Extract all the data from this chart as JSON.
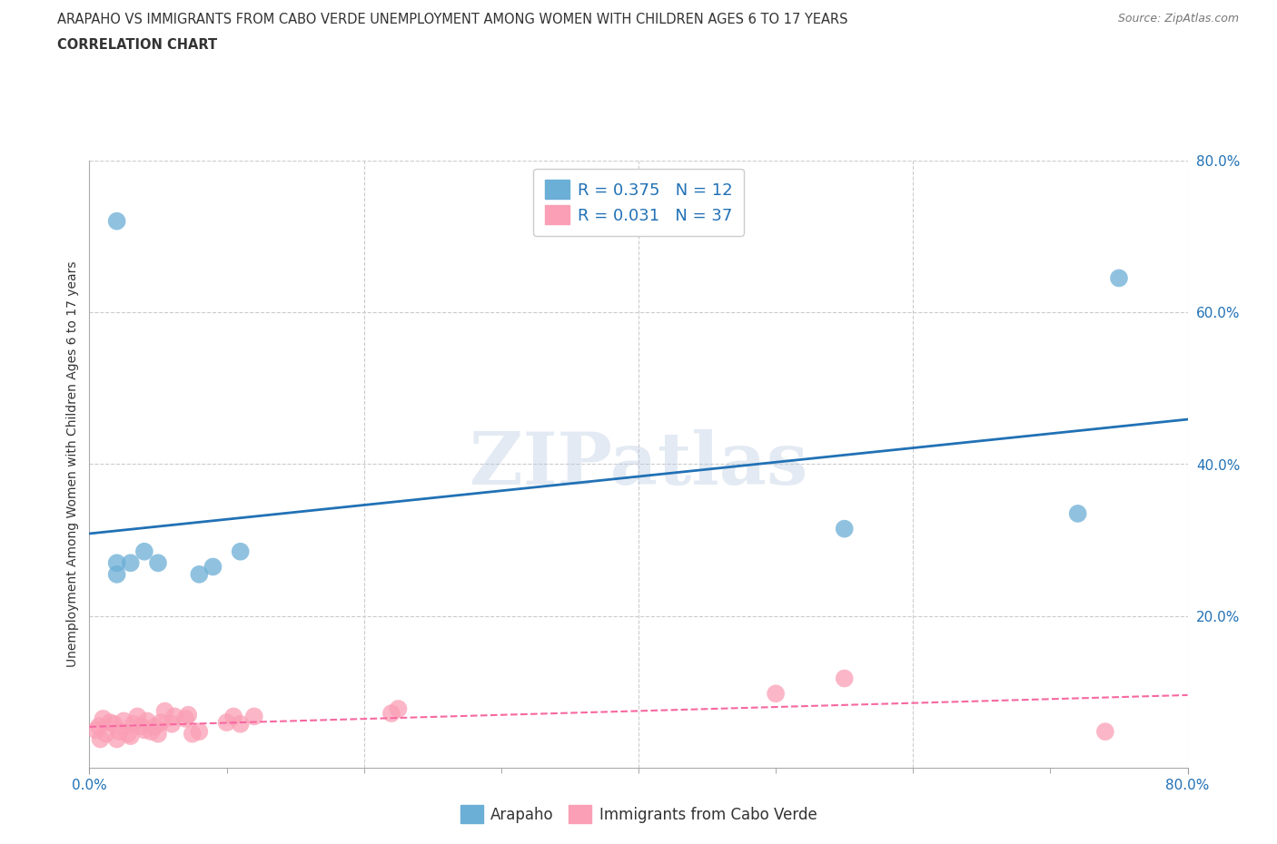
{
  "title_line1": "ARAPAHO VS IMMIGRANTS FROM CABO VERDE UNEMPLOYMENT AMONG WOMEN WITH CHILDREN AGES 6 TO 17 YEARS",
  "title_line2": "CORRELATION CHART",
  "source": "Source: ZipAtlas.com",
  "ylabel": "Unemployment Among Women with Children Ages 6 to 17 years",
  "xlim": [
    0.0,
    0.8
  ],
  "ylim": [
    0.0,
    0.8
  ],
  "x_tick_positions": [
    0.0,
    0.8
  ],
  "x_tick_labels": [
    "0.0%",
    "80.0%"
  ],
  "y_tick_positions": [
    0.2,
    0.4,
    0.6,
    0.8
  ],
  "y_tick_labels": [
    "20.0%",
    "40.0%",
    "60.0%",
    "80.0%"
  ],
  "watermark": "ZIPatlas",
  "legend_label1": "Arapaho",
  "legend_label2": "Immigrants from Cabo Verde",
  "R1": 0.375,
  "N1": 12,
  "R2": 0.031,
  "N2": 37,
  "arapaho_color": "#6baed6",
  "cabo_verde_color": "#fa9fb5",
  "arapaho_line_color": "#2171b5",
  "cabo_verde_line_color": "#f768a1",
  "grid_color": "#cccccc",
  "background_color": "#ffffff",
  "stat_label_color": "#2171b5",
  "title_color": "#333333",
  "arapaho_x": [
    0.02,
    0.02,
    0.02,
    0.03,
    0.04,
    0.05,
    0.08,
    0.09,
    0.11,
    0.55,
    0.72,
    0.75
  ],
  "arapaho_y": [
    0.72,
    0.27,
    0.255,
    0.27,
    0.285,
    0.27,
    0.255,
    0.265,
    0.285,
    0.315,
    0.335,
    0.645
  ],
  "cabo_verde_x": [
    0.005,
    0.007,
    0.008,
    0.01,
    0.012,
    0.015,
    0.018,
    0.02,
    0.022,
    0.025,
    0.028,
    0.03,
    0.032,
    0.035,
    0.038,
    0.04,
    0.042,
    0.045,
    0.048,
    0.05,
    0.052,
    0.055,
    0.06,
    0.062,
    0.07,
    0.072,
    0.075,
    0.08,
    0.1,
    0.105,
    0.11,
    0.12,
    0.22,
    0.225,
    0.5,
    0.55,
    0.74
  ],
  "cabo_verde_y": [
    0.05,
    0.055,
    0.038,
    0.065,
    0.045,
    0.06,
    0.058,
    0.038,
    0.048,
    0.062,
    0.045,
    0.042,
    0.058,
    0.068,
    0.055,
    0.05,
    0.062,
    0.048,
    0.055,
    0.045,
    0.06,
    0.075,
    0.058,
    0.068,
    0.065,
    0.07,
    0.045,
    0.048,
    0.06,
    0.068,
    0.058,
    0.068,
    0.072,
    0.078,
    0.098,
    0.118,
    0.048
  ]
}
